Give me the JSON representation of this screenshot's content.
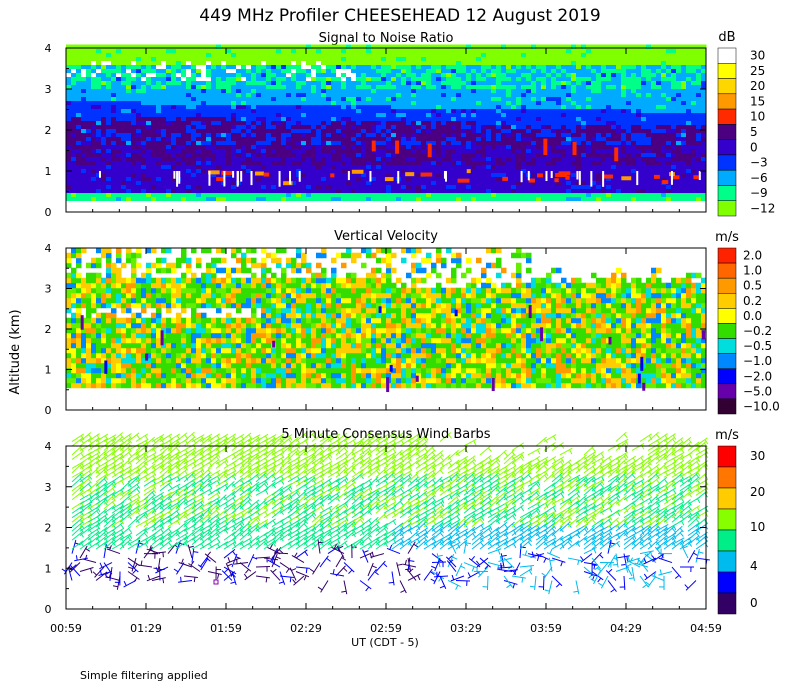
{
  "title": "449 MHz Profiler CHEESEHEAD 12 August 2019",
  "footer_note": "Simple filtering applied",
  "y_axis_label": "Altitude (km)",
  "x_axis_label": "UT  (CDT - 5)",
  "x_ticks": [
    "00:59",
    "01:29",
    "01:59",
    "02:29",
    "02:59",
    "03:29",
    "03:59",
    "04:29",
    "04:59"
  ],
  "y_ticks": [
    "0",
    "1",
    "2",
    "3",
    "4"
  ],
  "chart_data": [
    {
      "type": "heatmap",
      "title": "Signal to Noise Ratio",
      "units": "dB",
      "x_range": [
        "00:59",
        "04:59"
      ],
      "ylim": [
        0,
        4
      ],
      "colorbar": {
        "labels": [
          "30",
          "25",
          "20",
          "15",
          "10",
          "5",
          "0",
          "−3",
          "−6",
          "−9",
          "−12"
        ],
        "colors": [
          "#ffffff",
          "#ffff00",
          "#ffd700",
          "#ff9900",
          "#ff2a00",
          "#4b0082",
          "#3300cc",
          "#0033ff",
          "#00aaff",
          "#00ff88",
          "#7fff00"
        ]
      },
      "bands": [
        {
          "alt_range": [
            0.3,
            0.5
          ],
          "snr_db": -9
        },
        {
          "alt_range": [
            0.5,
            1.5
          ],
          "snr_db": 0
        },
        {
          "alt_range": [
            1.5,
            2.3
          ],
          "snr_db": -3
        },
        {
          "alt_range": [
            2.3,
            3.0
          ],
          "snr_db": -6
        },
        {
          "alt_range": [
            3.0,
            3.5
          ],
          "snr_db": -9
        },
        {
          "alt_range": [
            3.5,
            4.0
          ],
          "snr_db": -12
        }
      ]
    },
    {
      "type": "heatmap",
      "title": "Vertical Velocity",
      "units": "m/s",
      "x_range": [
        "00:59",
        "04:59"
      ],
      "ylim": [
        0,
        4
      ],
      "colorbar": {
        "labels": [
          "2.0",
          "1.0",
          "0.5",
          "0.2",
          "0.0",
          "−0.2",
          "−0.5",
          "−1.0",
          "−2.0",
          "−5.0",
          "−10.0"
        ],
        "colors": [
          "#ff2200",
          "#ff6600",
          "#ff9900",
          "#ffcc00",
          "#ffff00",
          "#33dd00",
          "#00dddd",
          "#0088ff",
          "#0000ff",
          "#6600aa",
          "#330033"
        ]
      },
      "bands": [
        {
          "alt_range": [
            0.5,
            2.0
          ],
          "w_ms": -0.2
        },
        {
          "alt_range": [
            2.0,
            3.0
          ],
          "w_ms": 0.0
        },
        {
          "alt_range": [
            3.0,
            4.0
          ],
          "w_ms": 0.2
        }
      ]
    },
    {
      "type": "scatter",
      "title": "5 Minute Consensus Wind Barbs",
      "units": "m/s",
      "x_range": [
        "00:59",
        "04:59"
      ],
      "ylim": [
        0,
        4
      ],
      "colorbar": {
        "labels": [
          "30",
          "20",
          "10",
          "4",
          "0"
        ],
        "colors": [
          "#ff0000",
          "#ff7700",
          "#ffcc00",
          "#88ff00",
          "#00ee88",
          "#00bbee",
          "#0000ff",
          "#330066"
        ]
      },
      "speed_profile": [
        {
          "alt_km": 0.8,
          "speed_ms": 2
        },
        {
          "alt_km": 1.3,
          "speed_ms": 4
        },
        {
          "alt_km": 2.0,
          "speed_ms": 8
        },
        {
          "alt_km": 3.0,
          "speed_ms": 10
        },
        {
          "alt_km": 4.0,
          "speed_ms": 12
        }
      ]
    }
  ]
}
